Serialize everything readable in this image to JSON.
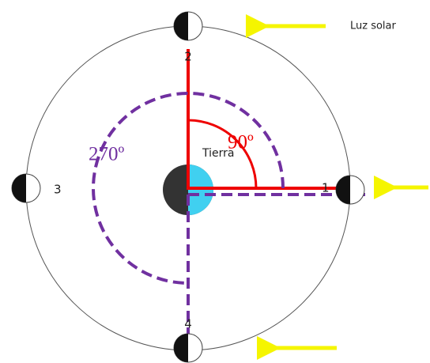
{
  "legend": {
    "sunlight": "Luz solar"
  },
  "positions": [
    {
      "label": "1"
    },
    {
      "label": "2"
    },
    {
      "label": "3"
    },
    {
      "label": "4"
    }
  ],
  "earth": {
    "label": "Tierra"
  },
  "angles": [
    {
      "label": "90º"
    },
    {
      "label": "270º"
    }
  ]
}
